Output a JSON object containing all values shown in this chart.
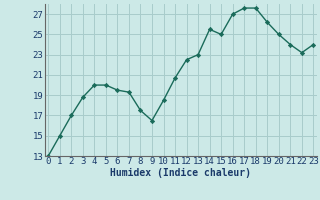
{
  "x": [
    0,
    1,
    2,
    3,
    4,
    5,
    6,
    7,
    8,
    9,
    10,
    11,
    12,
    13,
    14,
    15,
    16,
    17,
    18,
    19,
    20,
    21,
    22,
    23
  ],
  "y": [
    13,
    15,
    17,
    18.8,
    20.0,
    20.0,
    19.5,
    19.3,
    17.5,
    16.5,
    18.5,
    20.7,
    22.5,
    23.0,
    25.5,
    25.0,
    27.0,
    27.6,
    27.6,
    26.2,
    25.0,
    24.0,
    23.2,
    24.0
  ],
  "line_color": "#1a6b5a",
  "marker": "D",
  "marker_size": 2.2,
  "background_color": "#cce9e7",
  "grid_color": "#a8cccb",
  "xlabel": "Humidex (Indice chaleur)",
  "ylim": [
    13,
    28
  ],
  "xlim": [
    -0.3,
    23.3
  ],
  "yticks": [
    13,
    15,
    17,
    19,
    21,
    23,
    25,
    27
  ],
  "xtick_labels": [
    "0",
    "1",
    "2",
    "3",
    "4",
    "5",
    "6",
    "7",
    "8",
    "9",
    "10",
    "11",
    "12",
    "13",
    "14",
    "15",
    "16",
    "17",
    "18",
    "19",
    "20",
    "21",
    "22",
    "23"
  ],
  "xlabel_fontsize": 7,
  "tick_fontsize": 6.5,
  "label_color": "#1a3a6a",
  "linewidth": 1.0
}
